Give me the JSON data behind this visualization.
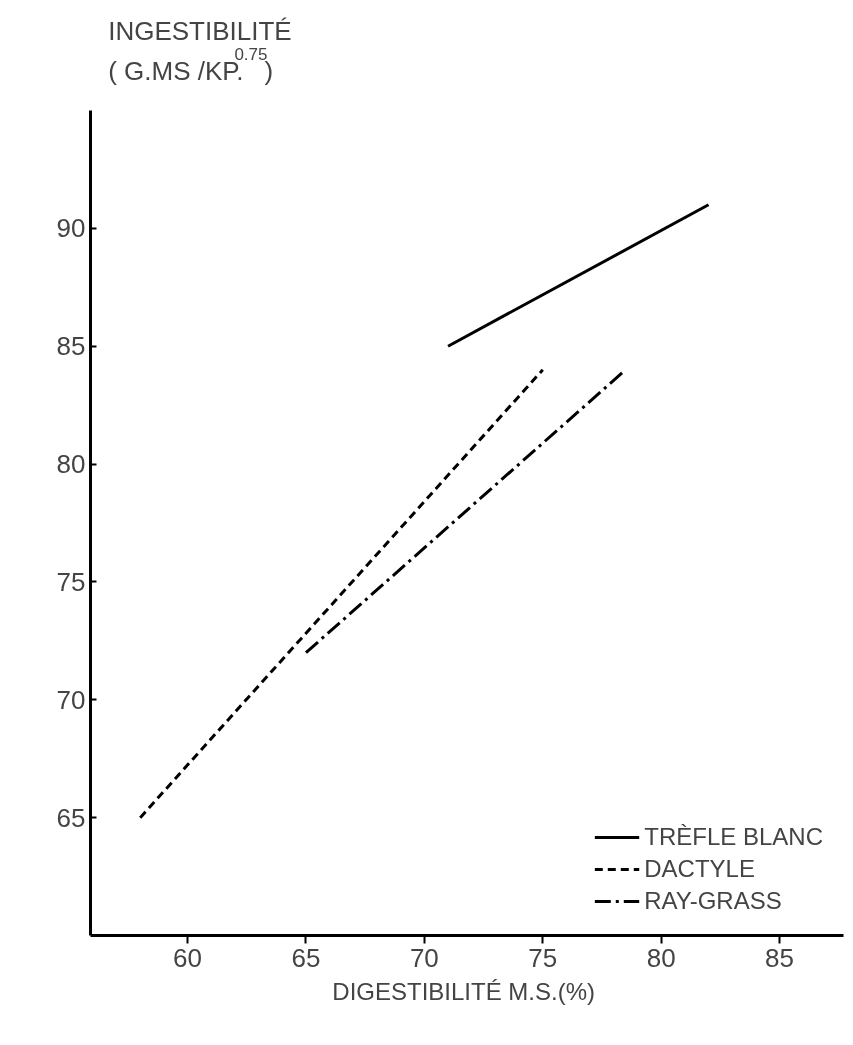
{
  "chart_data": {
    "type": "line",
    "xlabel": "DIGESTIBILITÉ  M.S.(%)",
    "ylabel": "INGESTIBILITÉ\n( G.MS /KP.$^{0.75}$)",
    "xlim": [
      55.9,
      87.7
    ],
    "xticks": [
      60,
      65,
      70,
      75,
      80,
      85
    ],
    "ylim": [
      60,
      95
    ],
    "yticks": [
      65,
      70,
      75,
      80,
      85,
      90
    ],
    "grid": false,
    "legend": "bottom right",
    "marker": "none",
    "series": [
      {
        "name": "TRÈFLE BLANC",
        "color": "#000000",
        "line_style": "solid",
        "x": [
          71,
          82
        ],
        "values": [
          85,
          91
        ]
      },
      {
        "name": "DACTYLE",
        "color": "#000000",
        "line_style": "dashed",
        "x": [
          58,
          75
        ],
        "values": [
          65,
          84
        ]
      },
      {
        "name": "RAY-GRASS",
        "color": "#000000",
        "line_style": "dashdot",
        "x": [
          65,
          78.5
        ],
        "values": [
          72,
          84
        ]
      }
    ]
  }
}
